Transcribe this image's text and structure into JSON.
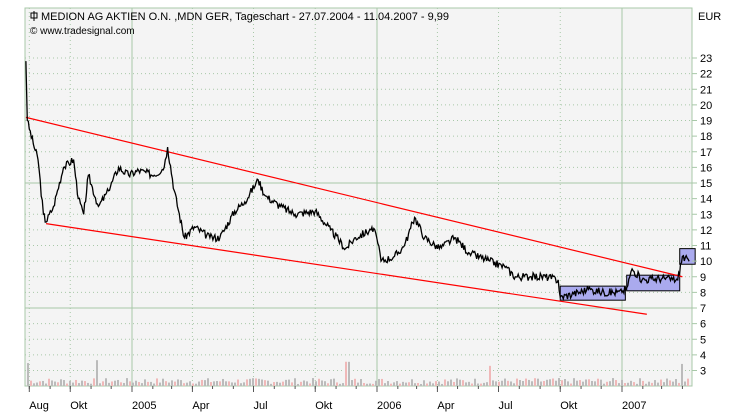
{
  "chart_data": {
    "type": "line",
    "title": "MEDION AG AKTIEN O.N. ,MDN GER, Tageschart - 27.07.2004 - 11.04.2007 - 9,99",
    "subtitle": "© www.tradesignal.com",
    "ylabel": "EUR",
    "ylim": [
      2,
      25
    ],
    "xlim": [
      "2004-07-27",
      "2007-04-20"
    ],
    "yticks": [
      3,
      4,
      5,
      6,
      7,
      8,
      9,
      10,
      11,
      12,
      13,
      14,
      15,
      16,
      17,
      18,
      19,
      20,
      21,
      22,
      23
    ],
    "xticks": [
      {
        "label": "Aug",
        "date": "2004-08-01"
      },
      {
        "label": "Okt",
        "date": "2004-10-01"
      },
      {
        "label": "2005",
        "date": "2005-01-01"
      },
      {
        "label": "Apr",
        "date": "2005-04-01"
      },
      {
        "label": "Jul",
        "date": "2005-07-01"
      },
      {
        "label": "Okt",
        "date": "2005-10-01"
      },
      {
        "label": "2006",
        "date": "2006-01-01"
      },
      {
        "label": "Apr",
        "date": "2006-04-01"
      },
      {
        "label": "Jul",
        "date": "2006-07-01"
      },
      {
        "label": "Okt",
        "date": "2006-10-01"
      },
      {
        "label": "2007",
        "date": "2007-01-01"
      }
    ],
    "grid": true,
    "colors": {
      "price": "#000000",
      "trendline": "#ff0000",
      "box_fill": "#aaaaee",
      "box_price": "#000066",
      "grid": "#a8c8a8",
      "background": "#f4f4f4",
      "volume": "#bbbbbb",
      "volume_alt": "#f0b8b8"
    },
    "series": [
      {
        "values": [
          [
            "2004-07-27",
            22.8
          ],
          [
            "2004-07-29",
            19.0
          ],
          [
            "2004-08-07",
            17.5
          ],
          [
            "2004-08-14",
            16.5
          ],
          [
            "2004-08-22",
            13.0
          ],
          [
            "2004-08-26",
            12.5
          ],
          [
            "2004-09-06",
            13.5
          ],
          [
            "2004-09-21",
            16.0
          ],
          [
            "2004-10-06",
            16.5
          ],
          [
            "2004-10-13",
            14.0
          ],
          [
            "2004-10-21",
            13.0
          ],
          [
            "2004-10-28",
            15.5
          ],
          [
            "2004-11-12",
            13.5
          ],
          [
            "2004-11-27",
            14.5
          ],
          [
            "2004-12-12",
            16.0
          ],
          [
            "2004-12-27",
            15.5
          ],
          [
            "2005-01-11",
            15.8
          ],
          [
            "2005-02-03",
            15.5
          ],
          [
            "2005-02-18",
            16.0
          ],
          [
            "2005-02-23",
            17.3
          ],
          [
            "2005-03-05",
            14.5
          ],
          [
            "2005-03-20",
            11.5
          ],
          [
            "2005-04-04",
            12.2
          ],
          [
            "2005-04-27",
            11.5
          ],
          [
            "2005-05-12",
            11.5
          ],
          [
            "2005-06-03",
            13.2
          ],
          [
            "2005-06-18",
            13.8
          ],
          [
            "2005-07-08",
            15.2
          ],
          [
            "2005-07-18",
            14.2
          ],
          [
            "2005-08-10",
            13.5
          ],
          [
            "2005-09-01",
            13.0
          ],
          [
            "2005-10-01",
            13.2
          ],
          [
            "2005-10-24",
            12.0
          ],
          [
            "2005-11-15",
            10.8
          ],
          [
            "2005-11-30",
            11.5
          ],
          [
            "2005-12-23",
            12.0
          ],
          [
            "2005-12-30",
            11.8
          ],
          [
            "2006-01-07",
            10.0
          ],
          [
            "2006-01-27",
            10.3
          ],
          [
            "2006-02-11",
            11.0
          ],
          [
            "2006-02-26",
            12.8
          ],
          [
            "2006-03-13",
            11.5
          ],
          [
            "2006-04-04",
            10.8
          ],
          [
            "2006-04-27",
            11.5
          ],
          [
            "2006-05-19",
            10.5
          ],
          [
            "2006-06-18",
            10.0
          ],
          [
            "2006-07-11",
            9.6
          ],
          [
            "2006-07-26",
            9.0
          ],
          [
            "2006-08-17",
            9.0
          ],
          [
            "2006-09-09",
            9.0
          ],
          [
            "2006-09-28",
            8.8
          ],
          [
            "2006-10-01",
            7.7
          ],
          [
            "2006-10-21",
            7.9
          ],
          [
            "2006-11-12",
            8.2
          ],
          [
            "2006-12-05",
            8.0
          ],
          [
            "2007-01-01",
            8.0
          ],
          [
            "2007-01-08",
            8.3
          ],
          [
            "2007-01-16",
            9.5
          ],
          [
            "2007-01-31",
            8.8
          ],
          [
            "2007-03-02",
            8.9
          ],
          [
            "2007-03-25",
            8.8
          ],
          [
            "2007-04-01",
            10.3
          ],
          [
            "2007-04-11",
            9.99
          ]
        ]
      }
    ],
    "trendlines": [
      {
        "from": [
          "2004-07-27",
          19.2
        ],
        "to": [
          "2007-04-01",
          9.0
        ]
      },
      {
        "from": [
          "2004-08-26",
          12.4
        ],
        "to": [
          "2007-02-07",
          6.6
        ]
      }
    ],
    "boxes": [
      {
        "from": "2006-10-01",
        "to": "2007-01-06",
        "low": 7.5,
        "high": 8.4
      },
      {
        "from": "2007-01-08",
        "to": "2007-03-28",
        "low": 8.1,
        "high": 9.1
      },
      {
        "from": "2007-03-28",
        "to": "2007-04-20",
        "low": 9.8,
        "high": 10.8
      }
    ]
  }
}
